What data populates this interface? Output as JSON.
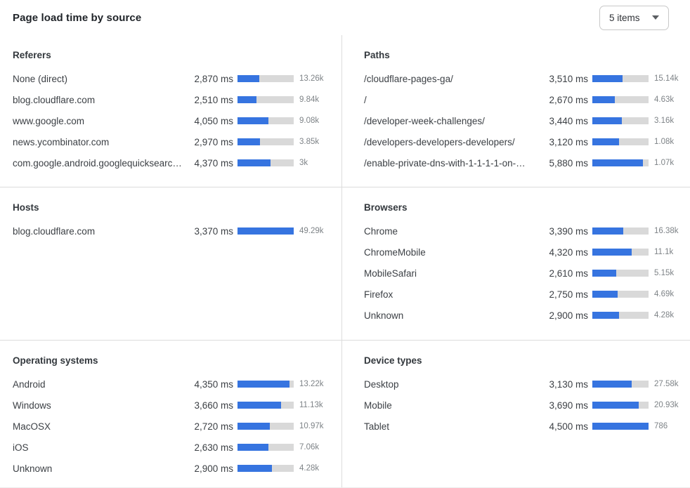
{
  "header": {
    "title": "Page load time by source",
    "items_selector": {
      "value": "5 items"
    }
  },
  "colors": {
    "bar_fill": "#3674e0",
    "bar_track": "#d9d9d9",
    "divider": "#dcdcdc"
  },
  "panels": [
    {
      "id": "referers",
      "title": "Referers",
      "rows": [
        {
          "label": "None (direct)",
          "ms": 2870,
          "ms_label": "2,870 ms",
          "count_label": "13.26k",
          "bar_pct": 38.5
        },
        {
          "label": "blog.cloudflare.com",
          "ms": 2510,
          "ms_label": "2,510 ms",
          "count_label": "9.84k",
          "bar_pct": 33.5
        },
        {
          "label": "www.google.com",
          "ms": 4050,
          "ms_label": "4,050 ms",
          "count_label": "9.08k",
          "bar_pct": 54.5
        },
        {
          "label": "news.ycombinator.com",
          "ms": 2970,
          "ms_label": "2,970 ms",
          "count_label": "3.85k",
          "bar_pct": 40
        },
        {
          "label": "com.google.android.googlequicksearc…",
          "ms": 4370,
          "ms_label": "4,370 ms",
          "count_label": "3k",
          "bar_pct": 59
        }
      ]
    },
    {
      "id": "paths",
      "title": "Paths",
      "rows": [
        {
          "label": "/cloudflare-pages-ga/",
          "ms": 3510,
          "ms_label": "3,510 ms",
          "count_label": "15.14k",
          "bar_pct": 53.5
        },
        {
          "label": "/",
          "ms": 2670,
          "ms_label": "2,670 ms",
          "count_label": "4.63k",
          "bar_pct": 40.5
        },
        {
          "label": "/developer-week-challenges/",
          "ms": 3440,
          "ms_label": "3,440 ms",
          "count_label": "3.16k",
          "bar_pct": 52.5
        },
        {
          "label": "/developers-developers-developers/",
          "ms": 3120,
          "ms_label": "3,120 ms",
          "count_label": "1.08k",
          "bar_pct": 47.5
        },
        {
          "label": "/enable-private-dns-with-1-1-1-1-on-…",
          "ms": 5880,
          "ms_label": "5,880 ms",
          "count_label": "1.07k",
          "bar_pct": 89.5
        }
      ]
    },
    {
      "id": "hosts",
      "title": "Hosts",
      "rows": [
        {
          "label": "blog.cloudflare.com",
          "ms": 3370,
          "ms_label": "3,370 ms",
          "count_label": "49.29k",
          "bar_pct": 100
        }
      ]
    },
    {
      "id": "browsers",
      "title": "Browsers",
      "rows": [
        {
          "label": "Chrome",
          "ms": 3390,
          "ms_label": "3,390 ms",
          "count_label": "16.38k",
          "bar_pct": 55.5
        },
        {
          "label": "ChromeMobile",
          "ms": 4320,
          "ms_label": "4,320 ms",
          "count_label": "11.1k",
          "bar_pct": 70.5
        },
        {
          "label": "MobileSafari",
          "ms": 2610,
          "ms_label": "2,610 ms",
          "count_label": "5.15k",
          "bar_pct": 42.5
        },
        {
          "label": "Firefox",
          "ms": 2750,
          "ms_label": "2,750 ms",
          "count_label": "4.69k",
          "bar_pct": 45
        },
        {
          "label": "Unknown",
          "ms": 2900,
          "ms_label": "2,900 ms",
          "count_label": "4.28k",
          "bar_pct": 47.5
        }
      ]
    },
    {
      "id": "operating-systems",
      "title": "Operating systems",
      "rows": [
        {
          "label": "Android",
          "ms": 4350,
          "ms_label": "4,350 ms",
          "count_label": "13.22k",
          "bar_pct": 93
        },
        {
          "label": "Windows",
          "ms": 3660,
          "ms_label": "3,660 ms",
          "count_label": "11.13k",
          "bar_pct": 77.5
        },
        {
          "label": "MacOSX",
          "ms": 2720,
          "ms_label": "2,720 ms",
          "count_label": "10.97k",
          "bar_pct": 57.5
        },
        {
          "label": "iOS",
          "ms": 2630,
          "ms_label": "2,630 ms",
          "count_label": "7.06k",
          "bar_pct": 54.5
        },
        {
          "label": "Unknown",
          "ms": 2900,
          "ms_label": "2,900 ms",
          "count_label": "4.28k",
          "bar_pct": 61.5
        }
      ]
    },
    {
      "id": "device-types",
      "title": "Device types",
      "rows": [
        {
          "label": "Desktop",
          "ms": 3130,
          "ms_label": "3,130 ms",
          "count_label": "27.58k",
          "bar_pct": 69.5
        },
        {
          "label": "Mobile",
          "ms": 3690,
          "ms_label": "3,690 ms",
          "count_label": "20.93k",
          "bar_pct": 82
        },
        {
          "label": "Tablet",
          "ms": 4500,
          "ms_label": "4,500 ms",
          "count_label": "786",
          "bar_pct": 100
        }
      ]
    }
  ]
}
